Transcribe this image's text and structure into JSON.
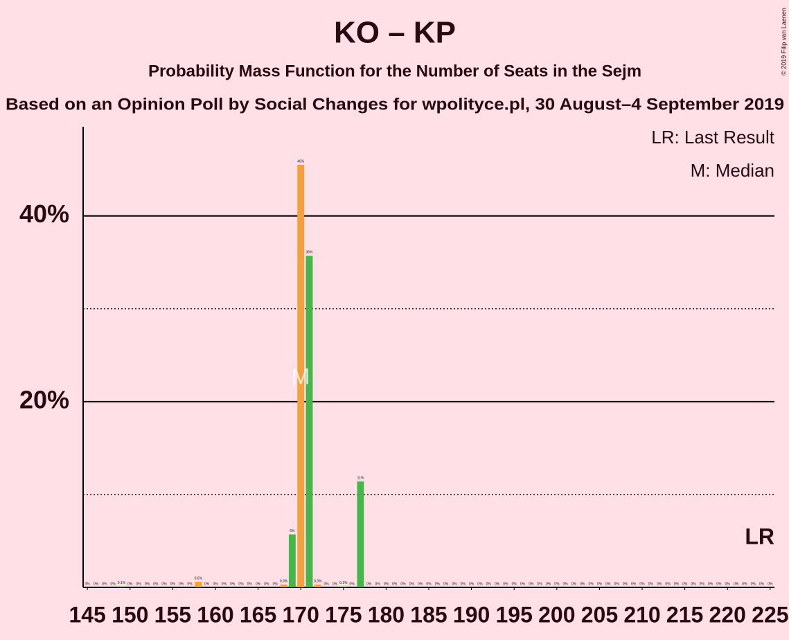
{
  "chart_data": {
    "type": "bar",
    "title": "KO – KP",
    "subtitle": "Probability Mass Function for the Number of Seats in the Sejm",
    "source": "Based on an Opinion Poll by Social Changes for wpolityce.pl, 30 August–4 September 2019",
    "copyright": "© 2019 Filip van Laenen",
    "legend": [
      "LR: Last Result",
      "M: Median"
    ],
    "x": [
      145,
      146,
      147,
      148,
      149,
      150,
      151,
      152,
      153,
      154,
      155,
      156,
      157,
      158,
      159,
      160,
      161,
      162,
      163,
      164,
      165,
      166,
      167,
      168,
      169,
      170,
      171,
      172,
      173,
      174,
      175,
      176,
      177,
      178,
      179,
      180,
      181,
      182,
      183,
      184,
      185,
      186,
      187,
      188,
      189,
      190,
      191,
      192,
      193,
      194,
      195,
      196,
      197,
      198,
      199,
      200,
      201,
      202,
      203,
      204,
      205,
      206,
      207,
      208,
      209,
      210,
      211,
      212,
      213,
      214,
      215,
      216,
      217,
      218,
      219,
      220,
      221,
      222,
      223,
      224,
      225
    ],
    "values": [
      0,
      0,
      0,
      0,
      0.1,
      0,
      0,
      0,
      0,
      0,
      0,
      0,
      0,
      0.6,
      0,
      0,
      0,
      0,
      0,
      0,
      0,
      0,
      0,
      0.3,
      5.7,
      45.5,
      35.7,
      0.3,
      0,
      0,
      0.1,
      0,
      11.4,
      0,
      0,
      0,
      0,
      0,
      0,
      0,
      0,
      0,
      0,
      0,
      0,
      0,
      0,
      0,
      0,
      0,
      0,
      0,
      0,
      0,
      0,
      0,
      0,
      0,
      0,
      0,
      0,
      0,
      0,
      0,
      0,
      0,
      0,
      0,
      0,
      0,
      0,
      0,
      0,
      0,
      0,
      0,
      0,
      0,
      0,
      0,
      0
    ],
    "value_labels": [
      "0%",
      "0%",
      "0%",
      "0%",
      "0.1%",
      "0%",
      "0%",
      "0%",
      "0%",
      "0%",
      "0%",
      "0%",
      "0%",
      "0.6%",
      "0%",
      "0%",
      "0%",
      "0%",
      "0%",
      "0%",
      "0%",
      "0%",
      "0%",
      "0.3%",
      "6%",
      "46%",
      "36%",
      "0.3%",
      "0%",
      "0%",
      "0.1%",
      "0%",
      "11%",
      "0%",
      "0%",
      "0%",
      "0%",
      "0%",
      "0%",
      "0%",
      "0%",
      "0%",
      "0%",
      "0%",
      "0%",
      "0%",
      "0%",
      "0%",
      "0%",
      "0%",
      "0%",
      "0%",
      "0%",
      "0%",
      "0%",
      "0%",
      "0%",
      "0%",
      "0%",
      "0%",
      "0%",
      "0%",
      "0%",
      "0%",
      "0%",
      "0%",
      "0%",
      "0%",
      "0%",
      "0%",
      "0%",
      "0%",
      "0%",
      "0%",
      "0%",
      "0%",
      "0%",
      "0%",
      "0%",
      "0%",
      "0%"
    ],
    "colors": [
      "#45b649",
      "#f4a03c"
    ],
    "xlim": [
      144.5,
      225.5
    ],
    "xticks": [
      145,
      150,
      155,
      160,
      165,
      170,
      175,
      180,
      185,
      190,
      195,
      200,
      205,
      210,
      215,
      220,
      225
    ],
    "ylim": [
      0,
      49.6
    ],
    "yticks": [
      {
        "value": 20,
        "label": "20%"
      },
      {
        "value": 40,
        "label": "40%"
      }
    ],
    "minor_yticks": [
      10,
      30
    ],
    "median": {
      "x": 170,
      "label": "M"
    },
    "last_result": {
      "x": 225,
      "label": "LR"
    }
  }
}
